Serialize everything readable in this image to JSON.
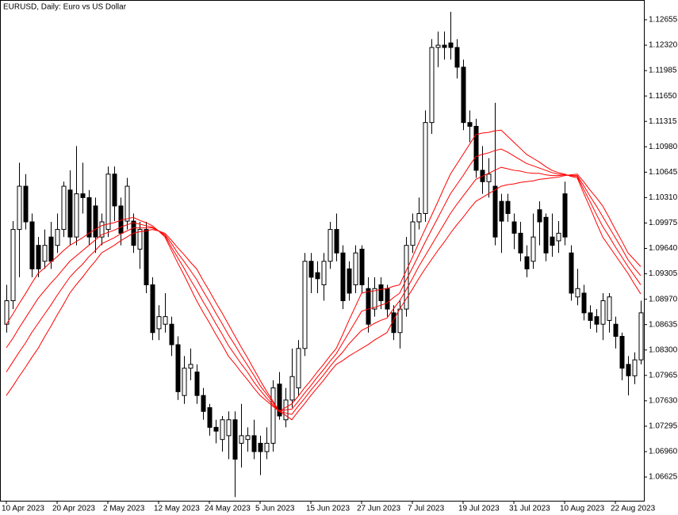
{
  "chart_data": {
    "type": "candlestick",
    "title": "EURUSD, Daily:  Euro vs US Dollar",
    "categories": [
      "10 Apr 2023",
      null,
      null,
      null,
      null,
      null,
      null,
      null,
      "20 Apr 2023",
      null,
      null,
      null,
      null,
      null,
      null,
      null,
      "2 May 2023",
      null,
      null,
      null,
      null,
      null,
      null,
      null,
      "12 May 2023",
      null,
      null,
      null,
      null,
      null,
      null,
      null,
      "24 May 2023",
      null,
      null,
      null,
      null,
      null,
      null,
      null,
      "5 Jun 2023",
      null,
      null,
      null,
      null,
      null,
      null,
      null,
      "15 Jun 2023",
      null,
      null,
      null,
      null,
      null,
      null,
      null,
      "27 Jun 2023",
      null,
      null,
      null,
      null,
      null,
      null,
      null,
      "7 Jul 2023",
      null,
      null,
      null,
      null,
      null,
      null,
      null,
      "19 Jul 2023",
      null,
      null,
      null,
      null,
      null,
      null,
      null,
      "31 Jul 2023",
      null,
      null,
      null,
      null,
      null,
      null,
      null,
      "10 Aug 2023",
      null,
      null,
      null,
      null,
      null,
      null,
      null,
      "22 Aug 2023",
      null,
      null,
      null,
      null
    ],
    "open": [
      1.0864,
      1.0895,
      1.0989,
      1.1046,
      1.0999,
      1.0968,
      1.0947,
      1.0979,
      1.0968,
      1.0989,
      1.1041,
      1.0979,
      1.1036,
      1.1031,
      1.102,
      1.0979,
      1.0989,
      1.1062,
      1.102,
      1.1,
      1.1,
      1.0963,
      1.0989,
      1.0916,
      1.0858,
      1.0864,
      1.0864,
      1.0837,
      1.077,
      1.0806,
      1.0801,
      1.077,
      1.0754,
      1.0728,
      1.0712,
      1.0717,
      1.0738,
      1.0707,
      1.0712,
      1.0717,
      1.0707,
      1.0696,
      1.0707,
      1.0785,
      1.0738,
      1.0764,
      1.078,
      1.0832,
      1.0947,
      1.0932,
      1.0916,
      1.0947,
      1.0989,
      1.0958,
      1.0937,
      1.0916,
      1.0963,
      1.0911,
      1.0884,
      1.0916,
      1.0911,
      1.0879,
      1.0853,
      1.0884,
      1.0968,
      1.0999,
      1.101,
      1.113,
      1.1229,
      1.1232,
      1.1235,
      1.1229,
      1.1203,
      1.113,
      1.1125,
      1.1067,
      1.1052,
      1.1046,
      1.1026,
      1.1026,
      1.0999,
      1.0984,
      1.0953,
      1.0947,
      1.1015,
      1.1005,
      1.0979,
      1.0974,
      1.1036,
      1.0958,
      1.09,
      1.0905,
      1.0879,
      1.0874,
      1.0864,
      1.0869,
      1.0864,
      1.0848,
      1.0811,
      1.0796,
      1.0817
    ],
    "high": [
      1.0916,
      1.1,
      1.1077,
      1.1062,
      1.101,
      1.0979,
      1.0989,
      1.0999,
      1.101,
      1.1052,
      1.1067,
      1.1099,
      1.1077,
      1.1041,
      1.1031,
      1.101,
      1.1072,
      1.1072,
      1.1031,
      1.1057,
      1.101,
      1.0999,
      1.0999,
      1.0926,
      1.0889,
      1.0905,
      1.0874,
      1.0848,
      1.0822,
      1.0832,
      1.0811,
      1.078,
      1.0759,
      1.0738,
      1.0743,
      1.0749,
      1.0749,
      1.0759,
      1.0728,
      1.0738,
      1.0717,
      1.0728,
      1.079,
      1.0801,
      1.078,
      1.0832,
      1.0843,
      1.0958,
      1.0958,
      1.0947,
      1.0958,
      1.0999,
      1.101,
      1.0968,
      1.0947,
      1.0968,
      1.0968,
      1.0926,
      1.0926,
      1.0926,
      1.0916,
      1.0889,
      1.0895,
      1.0979,
      1.101,
      1.1031,
      1.1146,
      1.124,
      1.125,
      1.125,
      1.1276,
      1.124,
      1.1213,
      1.1146,
      1.1135,
      1.1099,
      1.1083,
      1.1156,
      1.1036,
      1.1036,
      1.101,
      1.0999,
      1.0968,
      1.101,
      1.1026,
      1.101,
      1.101,
      1.1,
      1.1052,
      1.0968,
      1.0937,
      1.0916,
      1.0889,
      1.0884,
      1.0905,
      1.0905,
      1.0874,
      1.0853,
      1.0822,
      1.0827,
      1.0895
    ],
    "low": [
      1.0853,
      1.0884,
      1.0926,
      1.0989,
      1.0926,
      1.0926,
      1.0937,
      1.0937,
      1.0958,
      1.0979,
      1.0968,
      1.0968,
      1.101,
      1.0968,
      1.0958,
      1.0968,
      1.0979,
      1.1,
      1.0968,
      1.0989,
      1.0958,
      1.0937,
      1.0905,
      1.0843,
      1.0843,
      1.0853,
      1.0822,
      1.0764,
      1.0759,
      1.079,
      1.0759,
      1.0738,
      1.0717,
      1.0707,
      1.0696,
      1.0686,
      1.0636,
      1.0675,
      1.0696,
      1.0686,
      1.0665,
      1.0686,
      1.0696,
      1.0738,
      1.0728,
      1.0754,
      1.077,
      1.0822,
      1.0905,
      1.0905,
      1.0895,
      1.0937,
      1.0947,
      1.0884,
      1.0895,
      1.0905,
      1.0905,
      1.0853,
      1.0874,
      1.0884,
      1.0874,
      1.0843,
      1.0832,
      1.0874,
      1.0958,
      1.0989,
      1.0999,
      1.1115,
      1.1203,
      1.1213,
      1.1213,
      1.1188,
      1.112,
      1.1104,
      1.1057,
      1.1036,
      1.1031,
      1.0968,
      1.0958,
      1.0999,
      1.0963,
      1.0947,
      1.0926,
      1.0937,
      1.0968,
      1.0947,
      1.0953,
      1.0958,
      1.0968,
      1.0895,
      1.0889,
      1.0869,
      1.0858,
      1.0853,
      1.0843,
      1.0853,
      1.0832,
      1.079,
      1.077,
      1.0785,
      1.0811
    ],
    "close": [
      1.0895,
      1.0989,
      1.1046,
      1.0999,
      1.0937,
      1.0937,
      1.0968,
      1.0947,
      1.0989,
      1.1046,
      1.0979,
      1.1036,
      1.1031,
      1.0979,
      1.0979,
      1.0999,
      1.1062,
      1.102,
      1.0984,
      1.1046,
      1.0968,
      1.0989,
      1.0916,
      1.0853,
      1.0874,
      1.0874,
      1.0837,
      1.0775,
      1.0806,
      1.0811,
      1.077,
      1.0749,
      1.0728,
      1.0723,
      1.0738,
      1.0738,
      1.0686,
      1.0717,
      1.0717,
      1.0696,
      1.0696,
      1.0707,
      1.078,
      1.0743,
      1.0764,
      1.0795,
      1.0832,
      1.0947,
      1.0926,
      1.0924,
      1.0947,
      1.0989,
      1.0958,
      1.0895,
      1.0905,
      1.0958,
      1.0916,
      1.0864,
      1.0911,
      1.0895,
      1.0884,
      1.0853,
      1.0884,
      1.0968,
      1.0999,
      1.101,
      1.113,
      1.1229,
      1.1232,
      1.1229,
      1.1229,
      1.1203,
      1.113,
      1.1125,
      1.1067,
      1.1052,
      1.1062,
      1.0979,
      1.1,
      1.101,
      1.0984,
      1.0958,
      1.0937,
      1.0979,
      1.0999,
      1.0958,
      1.0968,
      1.0984,
      1.0979,
      1.0905,
      1.0911,
      1.0879,
      1.0869,
      1.0864,
      1.0895,
      1.09,
      1.0848,
      1.0806,
      1.0796,
      1.0817,
      1.0879
    ],
    "up_color": "#ffffff",
    "down_color": "#000000",
    "wick_color": "#000000",
    "line_series": [
      {
        "type": "line",
        "color": "#ff0000",
        "values": [
          1.0864,
          1.0877,
          1.0891,
          1.0904,
          1.0918,
          1.0931,
          1.0938,
          1.0946,
          1.0953,
          1.0961,
          1.0968,
          1.0973,
          1.0978,
          1.0984,
          1.0989,
          1.0994,
          1.0996,
          1.0998,
          1.1001,
          1.1003,
          1.1005,
          1.1001,
          1.0998,
          1.0994,
          1.0987,
          1.0979,
          1.0962,
          1.0945,
          1.0929,
          1.0912,
          1.0895,
          1.088,
          1.0866,
          1.0851,
          1.0837,
          1.0822,
          1.0812,
          1.0801,
          1.0791,
          1.078,
          1.077,
          1.0763,
          1.0756,
          1.0749,
          1.0754,
          1.0759,
          1.0769,
          1.078,
          1.079,
          1.0801,
          1.0811,
          1.0822,
          1.0832,
          1.085,
          1.0869,
          1.0887,
          1.0905,
          1.0907,
          1.0908,
          1.091,
          1.0911,
          1.0914,
          1.0916,
          1.0934,
          1.0952,
          1.0971,
          1.0989,
          1.1007,
          1.1025,
          1.1044,
          1.1062,
          1.1075,
          1.1088,
          1.1101,
          1.1114,
          1.1116,
          1.1117,
          1.1119,
          1.112,
          1.1112,
          1.1104,
          1.1096,
          1.1088,
          1.1083,
          1.1078,
          1.1072,
          1.1067,
          1.1064,
          1.1062,
          1.1059,
          1.1057,
          1.1037,
          1.1018,
          1.0998,
          1.0979,
          1.0967,
          1.0955,
          1.0943,
          1.0931,
          1.0917,
          1.0904
        ]
      },
      {
        "type": "line",
        "color": "#ff0000",
        "values": [
          1.0833,
          1.0845,
          1.0859,
          1.0872,
          1.0885,
          1.0898,
          1.0908,
          1.0918,
          1.0927,
          1.0937,
          1.0947,
          1.0954,
          1.0961,
          1.0968,
          1.0975,
          1.0982,
          1.0985,
          1.0988,
          1.0992,
          1.0995,
          1.0998,
          1.0996,
          1.0994,
          1.0992,
          1.0987,
          1.0981,
          1.0966,
          1.0952,
          1.0938,
          1.0923,
          1.0909,
          1.0894,
          1.088,
          1.0865,
          1.0851,
          1.0836,
          1.0824,
          1.0812,
          1.0801,
          1.0788,
          1.0777,
          1.0767,
          1.0758,
          1.0749,
          1.0751,
          1.0752,
          1.0762,
          1.0773,
          1.0783,
          1.0794,
          1.0804,
          1.0815,
          1.0825,
          1.0839,
          1.0853,
          1.0867,
          1.0881,
          1.0884,
          1.0886,
          1.0889,
          1.0892,
          1.0899,
          1.0905,
          1.0922,
          1.0938,
          1.0955,
          1.0972,
          1.0988,
          1.1004,
          1.102,
          1.1036,
          1.1048,
          1.106,
          1.1073,
          1.1085,
          1.1088,
          1.109,
          1.1093,
          1.1095,
          1.1091,
          1.1086,
          1.1081,
          1.1076,
          1.1073,
          1.107,
          1.1067,
          1.1064,
          1.1062,
          1.1061,
          1.106,
          1.1059,
          1.1042,
          1.1026,
          1.1009,
          1.0993,
          1.098,
          1.0966,
          1.0953,
          1.094,
          1.0928,
          1.0916
        ]
      },
      {
        "type": "line",
        "color": "#ff0000",
        "values": [
          1.0801,
          1.0814,
          1.0827,
          1.0839,
          1.0853,
          1.0865,
          1.0877,
          1.0889,
          1.0902,
          1.0914,
          1.0926,
          1.0935,
          1.0943,
          1.0953,
          1.0961,
          1.097,
          1.0974,
          1.0978,
          1.0983,
          1.0987,
          1.0991,
          1.0991,
          1.0991,
          1.0991,
          1.0987,
          1.0982,
          1.0971,
          1.0958,
          1.0947,
          1.0935,
          1.0923,
          1.0908,
          1.0894,
          1.0879,
          1.0865,
          1.085,
          1.0837,
          1.0823,
          1.081,
          1.0797,
          1.0783,
          1.0772,
          1.0761,
          1.0749,
          1.0747,
          1.0745,
          1.0756,
          1.0766,
          1.0777,
          1.0787,
          1.0797,
          1.0808,
          1.0818,
          1.0827,
          1.0838,
          1.0847,
          1.0856,
          1.086,
          1.0865,
          1.0869,
          1.0872,
          1.0884,
          1.0895,
          1.0909,
          1.0924,
          1.094,
          1.0954,
          1.0968,
          1.0982,
          1.0996,
          1.101,
          1.1022,
          1.1033,
          1.1044,
          1.1055,
          1.1059,
          1.1063,
          1.1067,
          1.1071,
          1.1069,
          1.1067,
          1.1066,
          1.1064,
          1.1063,
          1.1063,
          1.1061,
          1.106,
          1.106,
          1.1061,
          1.106,
          1.106,
          1.1047,
          1.1033,
          1.102,
          1.1006,
          1.0992,
          1.0978,
          1.0964,
          1.0949,
          1.0938,
          1.0928
        ]
      },
      {
        "type": "line",
        "color": "#ff0000",
        "values": [
          1.077,
          1.0782,
          1.0795,
          1.0807,
          1.082,
          1.0832,
          1.0847,
          1.0861,
          1.0876,
          1.089,
          1.0905,
          1.0916,
          1.0926,
          1.0937,
          1.0947,
          1.0958,
          1.0963,
          1.0968,
          1.0974,
          1.0979,
          1.0984,
          1.0986,
          1.0987,
          1.0989,
          1.0987,
          1.0984,
          1.0975,
          1.0965,
          1.0956,
          1.0946,
          1.0937,
          1.0922,
          1.0908,
          1.0893,
          1.0879,
          1.0864,
          1.0849,
          1.0834,
          1.082,
          1.0805,
          1.079,
          1.0776,
          1.0763,
          1.0749,
          1.0744,
          1.0738,
          1.0749,
          1.0759,
          1.077,
          1.078,
          1.079,
          1.0801,
          1.0811,
          1.0816,
          1.0822,
          1.0827,
          1.0832,
          1.0837,
          1.0843,
          1.0848,
          1.0853,
          1.0869,
          1.0884,
          1.0897,
          1.091,
          1.0924,
          1.0937,
          1.0949,
          1.0961,
          1.0972,
          1.0984,
          1.0995,
          1.1005,
          1.1016,
          1.1026,
          1.1031,
          1.1036,
          1.1041,
          1.1046,
          1.1048,
          1.1049,
          1.1051,
          1.1052,
          1.1053,
          1.1055,
          1.1056,
          1.1057,
          1.1058,
          1.106,
          1.1061,
          1.1062,
          1.1052,
          1.1041,
          1.1031,
          1.102,
          1.1005,
          1.0989,
          1.0974,
          1.0958,
          1.0949,
          1.094
        ]
      }
    ],
    "ylim": [
      1.06312,
      1.12916
    ],
    "yticks": [
      1.12655,
      {
        "value": 1.1232,
        "label": "1.12320"
      },
      1.11985,
      {
        "value": 1.1165,
        "label": "1.11650"
      },
      1.11315,
      {
        "value": 1.1098,
        "label": "1.10980"
      },
      1.10645,
      {
        "value": 1.1031,
        "label": "1.10310"
      },
      1.09975,
      {
        "value": 1.0964,
        "label": "1.09640"
      },
      1.09305,
      {
        "value": 1.0897,
        "label": "1.08970"
      },
      1.08635,
      {
        "value": 1.083,
        "label": "1.08300"
      },
      1.07965,
      {
        "value": 1.0763,
        "label": "1.07630"
      },
      1.07295,
      {
        "value": 1.0696,
        "label": "1.06960"
      },
      1.06625
    ],
    "grid": false
  }
}
